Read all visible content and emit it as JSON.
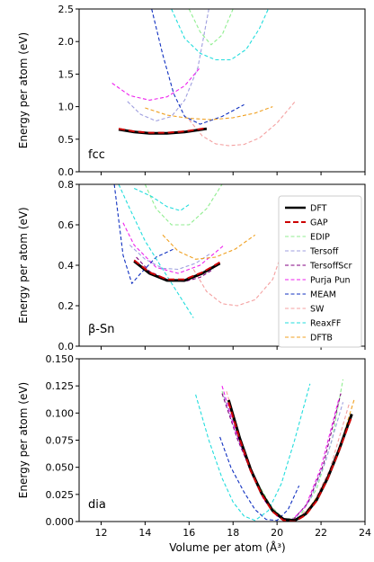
{
  "chart_data": {
    "type": "line",
    "xlabel": "Volume per atom (Å³)",
    "ylabel": "Energy per atom (eV)",
    "xlim": [
      11,
      24
    ],
    "xticks": [
      "12",
      "14",
      "16",
      "18",
      "20",
      "22",
      "24"
    ],
    "legend": {
      "placement": "right of middle panel",
      "entries": [
        {
          "name": "DFT",
          "color": "#000000",
          "style": "solid"
        },
        {
          "name": "GAP",
          "color": "#cc0000",
          "style": "dashed"
        },
        {
          "name": "EDIP",
          "color": "#90ee90",
          "style": "dashed"
        },
        {
          "name": "Tersoff",
          "color": "#9f9fdf",
          "style": "dashed"
        },
        {
          "name": "TersoffScr",
          "color": "#800080",
          "style": "dashed"
        },
        {
          "name": "Purja Pun",
          "color": "#ee22ee",
          "style": "dashed"
        },
        {
          "name": "MEAM",
          "color": "#1030c0",
          "style": "dashed"
        },
        {
          "name": "SW",
          "color": "#f4a0a0",
          "style": "dashed"
        },
        {
          "name": "ReaxFF",
          "color": "#22dddd",
          "style": "dashed"
        },
        {
          "name": "DFTB",
          "color": "#f0a020",
          "style": "dashed"
        }
      ]
    },
    "panels": [
      {
        "label": "fcc",
        "ylim": [
          0,
          2.5
        ],
        "yticks": [
          "0.0",
          "0.5",
          "1.0",
          "1.5",
          "2.0",
          "2.5"
        ],
        "series": [
          {
            "name": "DFT",
            "x": [
              12.8,
              13.5,
              14.2,
              15.0,
              15.8,
              16.8
            ],
            "y": [
              0.65,
              0.61,
              0.59,
              0.59,
              0.61,
              0.66
            ]
          },
          {
            "name": "GAP",
            "x": [
              12.8,
              13.5,
              14.2,
              15.0,
              15.8,
              16.8
            ],
            "y": [
              0.66,
              0.62,
              0.6,
              0.6,
              0.62,
              0.67
            ]
          },
          {
            "name": "EDIP",
            "x": [
              16.0,
              16.5,
              17.0,
              17.5,
              18.0
            ],
            "y": [
              2.5,
              2.15,
              1.95,
              2.1,
              2.5
            ]
          },
          {
            "name": "Tersoff",
            "x": [
              13.2,
              13.8,
              14.5,
              15.2,
              15.8,
              16.4,
              16.9
            ],
            "y": [
              1.08,
              0.88,
              0.78,
              0.85,
              1.1,
              1.6,
              2.5
            ]
          },
          {
            "name": "Purja Pun",
            "x": [
              12.5,
              13.3,
              14.2,
              15.0,
              15.8,
              16.5
            ],
            "y": [
              1.36,
              1.17,
              1.1,
              1.15,
              1.32,
              1.6
            ]
          },
          {
            "name": "MEAM",
            "x": [
              14.3,
              14.8,
              15.3,
              15.8,
              16.5,
              17.5,
              18.5
            ],
            "y": [
              2.5,
              1.8,
              1.2,
              0.85,
              0.73,
              0.85,
              1.03
            ]
          },
          {
            "name": "SW",
            "x": [
              16.0,
              16.6,
              17.2,
              17.8,
              18.5,
              19.2,
              20.0,
              20.8
            ],
            "y": [
              0.8,
              0.55,
              0.43,
              0.4,
              0.42,
              0.52,
              0.75,
              1.07
            ]
          },
          {
            "name": "ReaxFF",
            "x": [
              15.2,
              15.8,
              16.5,
              17.2,
              17.9,
              18.6,
              19.2,
              19.6
            ],
            "y": [
              2.5,
              2.05,
              1.82,
              1.72,
              1.72,
              1.88,
              2.2,
              2.5
            ]
          },
          {
            "name": "DFTB",
            "x": [
              14.0,
              15.0,
              16.0,
              17.0,
              18.0,
              19.0,
              19.8
            ],
            "y": [
              0.98,
              0.87,
              0.82,
              0.8,
              0.83,
              0.9,
              1.0
            ]
          }
        ]
      },
      {
        "label": "β-Sn",
        "ylim": [
          0,
          0.8
        ],
        "yticks": [
          "0.0",
          "0.2",
          "0.4",
          "0.6",
          "0.8"
        ],
        "series": [
          {
            "name": "DFT",
            "x": [
              13.5,
              14.2,
              15.0,
              15.8,
              16.6,
              17.4
            ],
            "y": [
              0.42,
              0.36,
              0.325,
              0.325,
              0.36,
              0.41
            ]
          },
          {
            "name": "GAP",
            "x": [
              13.5,
              14.2,
              15.0,
              15.8,
              16.6,
              17.4
            ],
            "y": [
              0.425,
              0.365,
              0.33,
              0.33,
              0.365,
              0.415
            ]
          },
          {
            "name": "EDIP",
            "x": [
              14.0,
              14.5,
              15.2,
              16.0,
              16.8,
              17.5
            ],
            "y": [
              0.8,
              0.68,
              0.6,
              0.6,
              0.68,
              0.8
            ]
          },
          {
            "name": "Tersoff",
            "x": [
              13.3,
              14.0,
              14.8,
              15.5,
              16.3,
              17.0
            ],
            "y": [
              0.5,
              0.43,
              0.385,
              0.38,
              0.41,
              0.46
            ]
          },
          {
            "name": "TersoffScr",
            "x": [
              13.6,
              14.2,
              15.0,
              15.8,
              16.5,
              17.1
            ],
            "y": [
              0.44,
              0.37,
              0.33,
              0.32,
              0.34,
              0.38
            ]
          },
          {
            "name": "Purja Pun",
            "x": [
              13.0,
              13.5,
              14.5,
              15.5,
              16.5,
              17.6
            ],
            "y": [
              0.61,
              0.5,
              0.39,
              0.36,
              0.4,
              0.5
            ]
          },
          {
            "name": "MEAM",
            "x": [
              12.6,
              13.0,
              13.4,
              13.8,
              14.5,
              15.3
            ],
            "y": [
              0.8,
              0.45,
              0.31,
              0.36,
              0.44,
              0.48
            ]
          },
          {
            "name": "SW",
            "x": [
              16.2,
              16.8,
              17.5,
              18.2,
              19.0,
              19.8,
              20.4
            ],
            "y": [
              0.38,
              0.27,
              0.21,
              0.2,
              0.23,
              0.33,
              0.52
            ]
          },
          {
            "name": "ReaxFF",
            "x": [
              12.8,
              13.3,
              14.0,
              14.8,
              15.5,
              16.2
            ],
            "y": [
              0.8,
              0.68,
              0.52,
              0.38,
              0.26,
              0.14
            ]
          },
          {
            "name": "ReaxFF",
            "x": [
              13.5,
              14.3,
              15.0,
              15.6,
              16.0
            ],
            "y": [
              0.78,
              0.74,
              0.69,
              0.67,
              0.7
            ]
          },
          {
            "name": "DFTB",
            "x": [
              14.8,
              15.5,
              16.3,
              17.2,
              18.1,
              19.0
            ],
            "y": [
              0.55,
              0.47,
              0.43,
              0.44,
              0.48,
              0.55
            ]
          }
        ]
      },
      {
        "label": "dia",
        "ylim": [
          0,
          0.15
        ],
        "yticks": [
          "0.000",
          "0.025",
          "0.050",
          "0.075",
          "0.100",
          "0.125",
          "0.150"
        ],
        "series": [
          {
            "name": "DFT",
            "x": [
              17.8,
              18.3,
              18.8,
              19.3,
              19.8,
              20.3,
              20.8,
              21.3,
              21.8,
              22.3,
              22.8,
              23.4
            ],
            "y": [
              0.112,
              0.077,
              0.048,
              0.026,
              0.01,
              0.002,
              0.001,
              0.007,
              0.02,
              0.04,
              0.065,
              0.099
            ]
          },
          {
            "name": "GAP",
            "x": [
              17.8,
              18.3,
              18.8,
              19.3,
              19.8,
              20.3,
              20.8,
              21.3,
              21.8,
              22.3,
              22.8,
              23.4
            ],
            "y": [
              0.11,
              0.076,
              0.047,
              0.025,
              0.009,
              0.001,
              0.0,
              0.006,
              0.019,
              0.039,
              0.064,
              0.097
            ]
          },
          {
            "name": "EDIP",
            "x": [
              17.5,
              18.3,
              19.0,
              19.7,
              20.3,
              21.0,
              21.8,
              22.5,
              23.0
            ],
            "y": [
              0.12,
              0.075,
              0.04,
              0.015,
              0.002,
              0.004,
              0.03,
              0.075,
              0.131
            ]
          },
          {
            "name": "Tersoff",
            "x": [
              17.6,
              18.3,
              19.0,
              19.6,
              20.2,
              20.8,
              21.5,
              22.2,
              23.0
            ],
            "y": [
              0.115,
              0.072,
              0.039,
              0.016,
              0.003,
              0.002,
              0.02,
              0.055,
              0.11
            ]
          },
          {
            "name": "TersoffScr",
            "x": [
              17.5,
              18.2,
              18.9,
              19.5,
              20.1,
              20.7,
              21.4,
              22.1,
              22.9
            ],
            "y": [
              0.118,
              0.076,
              0.042,
              0.018,
              0.004,
              0.001,
              0.017,
              0.052,
              0.118
            ]
          },
          {
            "name": "Purja Pun",
            "x": [
              17.5,
              18.1,
              18.8,
              19.4,
              20.0,
              20.6,
              21.3,
              22.0,
              22.8
            ],
            "y": [
              0.125,
              0.084,
              0.046,
              0.02,
              0.005,
              0.0,
              0.014,
              0.05,
              0.112
            ]
          },
          {
            "name": "MEAM",
            "x": [
              17.4,
              17.9,
              18.5,
              19.0,
              19.5,
              20.0,
              20.5,
              21.0
            ],
            "y": [
              0.078,
              0.05,
              0.027,
              0.011,
              0.002,
              0.001,
              0.011,
              0.033
            ]
          },
          {
            "name": "SW",
            "x": [
              17.7,
              18.3,
              19.0,
              19.6,
              20.2,
              20.8,
              21.6,
              22.4,
              23.3
            ],
            "y": [
              0.12,
              0.078,
              0.04,
              0.016,
              0.003,
              0.001,
              0.015,
              0.048,
              0.11
            ]
          },
          {
            "name": "ReaxFF",
            "x": [
              16.3,
              16.9,
              17.5,
              18.0,
              18.5,
              19.0,
              19.6,
              20.2,
              20.8,
              21.5
            ],
            "y": [
              0.117,
              0.075,
              0.04,
              0.018,
              0.005,
              0.001,
              0.01,
              0.035,
              0.075,
              0.127
            ]
          },
          {
            "name": "DFTB",
            "x": [
              17.8,
              18.5,
              19.2,
              19.9,
              20.5,
              21.2,
              22.0,
              22.8,
              23.5
            ],
            "y": [
              0.108,
              0.064,
              0.03,
              0.008,
              0.0,
              0.005,
              0.028,
              0.065,
              0.112
            ]
          }
        ]
      }
    ]
  }
}
